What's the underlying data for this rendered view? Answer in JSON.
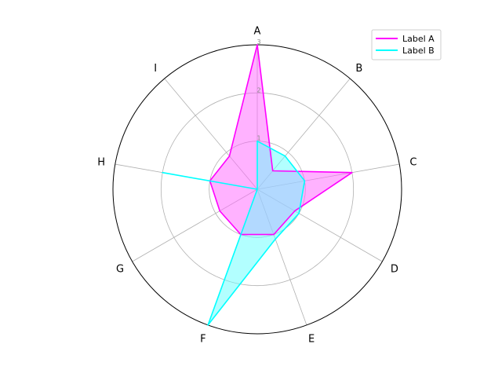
{
  "chart_data": {
    "type": "radar",
    "title": "",
    "categories": [
      "A",
      "B",
      "C",
      "D",
      "E",
      "F",
      "G",
      "H",
      "I"
    ],
    "rlim": [
      0,
      3
    ],
    "r_ticks": [
      "1",
      "2",
      "3"
    ],
    "grid": true,
    "legend_position": "top-right",
    "series": [
      {
        "name": "Label A",
        "color": "#ff00ff",
        "fill": "#ff66ff",
        "values": [
          3.0,
          0.5,
          2.0,
          0.9,
          1.0,
          1.0,
          0.9,
          1.0,
          0.9
        ]
      },
      {
        "name": "Label B",
        "color": "#00ffff",
        "fill": "#66ffff",
        "values": [
          1.0,
          0.9,
          1.0,
          1.0,
          1.1,
          3.0,
          0.0,
          2.0,
          0.0
        ]
      }
    ]
  }
}
